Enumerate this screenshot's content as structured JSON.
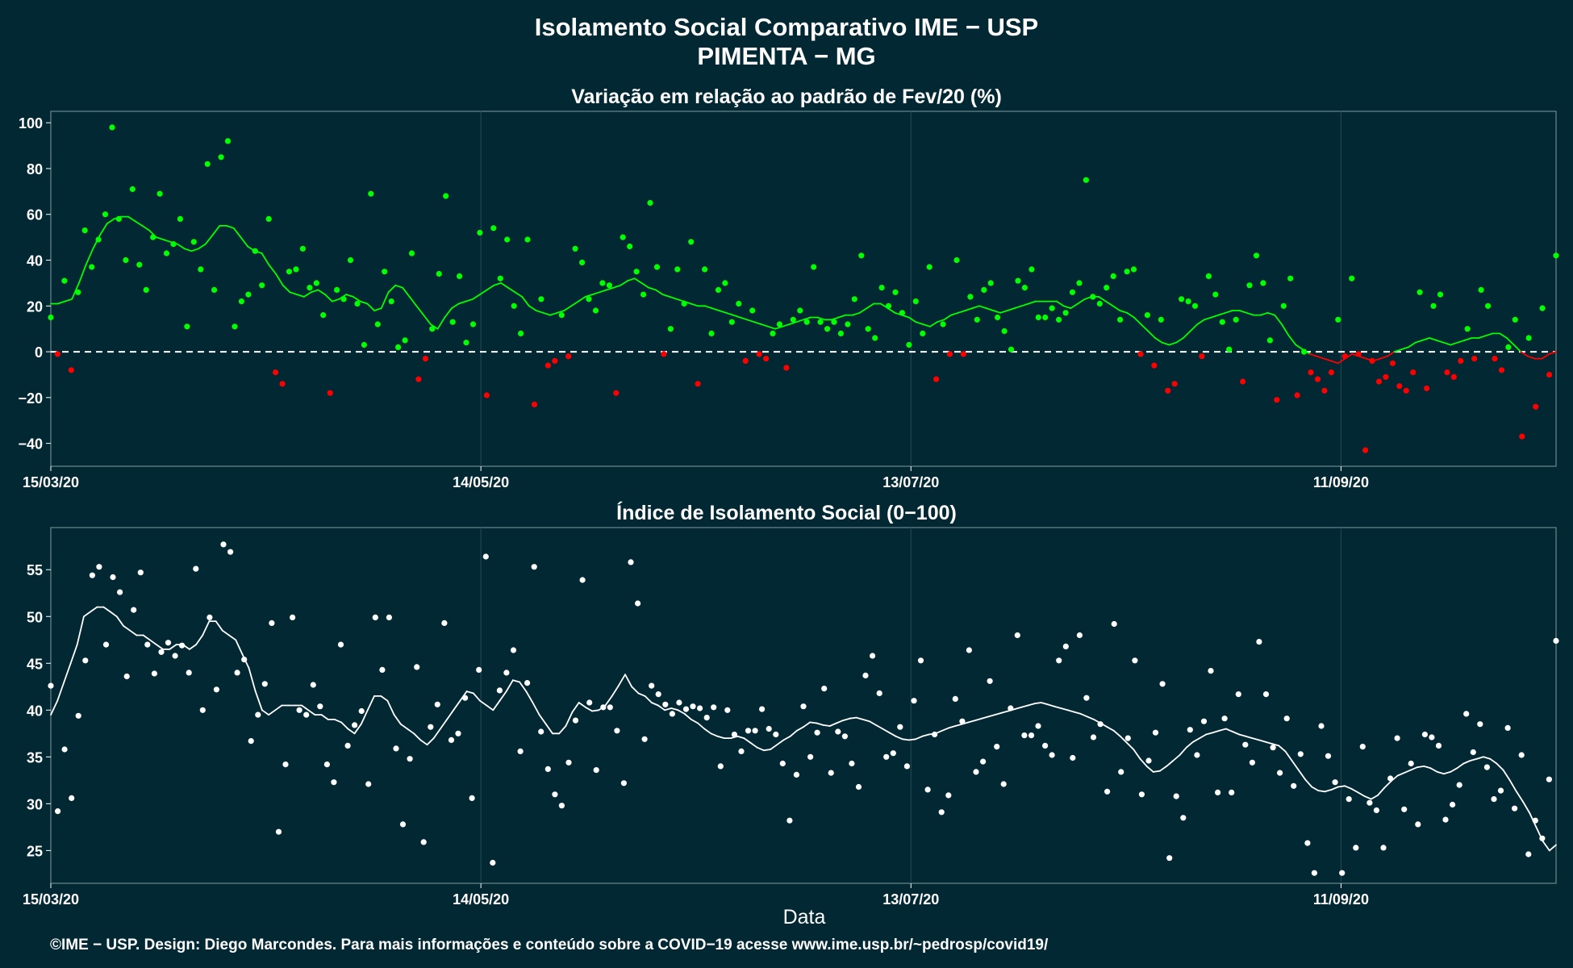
{
  "header": {
    "title": "Isolamento Social Comparativo IME − USP",
    "subtitle": "PIMENTA − MG"
  },
  "footer": {
    "xlabel": "Data",
    "credit": "©IME − USP. Design: Diego Marcondes. Para mais informações e conteúdo sobre a COVID−19 acesse www.ime.usp.br/~pedrosp/covid19/"
  },
  "colors": {
    "background": "#022833",
    "frame": "#6b8a8f",
    "positive": "#00ff00",
    "negative": "#ff0000",
    "index": "#ffffff"
  },
  "chart_data": [
    {
      "type": "scatter",
      "title": "Variação em relação ao padrão de Fev/20 (%)",
      "xlabel": "Data",
      "ylabel": "",
      "x_start": "15/03/20",
      "x_end": "11/10/20",
      "xlim": [
        "15/03/20",
        "11/10/20"
      ],
      "ylim": [
        -50,
        105
      ],
      "y_ticks": [
        -40,
        -20,
        0,
        20,
        40,
        60,
        80,
        100
      ],
      "x_ticks": [
        "15/03/20",
        "14/05/20",
        "13/07/20",
        "11/09/20"
      ],
      "reference_line": 0,
      "color_rule": "green when value >= 0, red when value < 0",
      "series": [
        {
          "kind": "daily points",
          "values": [
            15,
            -1,
            31,
            -8,
            26,
            53,
            37,
            49,
            60,
            98,
            58,
            40,
            71,
            38,
            27,
            50,
            69,
            43,
            47,
            58,
            11,
            48,
            36,
            82,
            27,
            85,
            92,
            11,
            22,
            25,
            44,
            29,
            58,
            -9,
            -14,
            35,
            36,
            45,
            28,
            30,
            16,
            -18,
            27,
            23,
            40,
            21,
            3,
            69,
            12,
            35,
            22,
            2,
            5,
            43,
            -12,
            -3,
            10,
            34,
            68,
            13,
            33,
            4,
            12,
            52,
            -19,
            54,
            32,
            49,
            20,
            8,
            49,
            -23,
            23,
            -6,
            -4,
            16,
            -2,
            45,
            39,
            23,
            18,
            30,
            29,
            -18,
            50,
            46,
            35,
            25,
            65,
            37,
            -1,
            10,
            36,
            21,
            48,
            -14,
            36,
            8,
            27,
            30,
            13,
            21,
            -4,
            18,
            -1,
            -3,
            8,
            12,
            -7,
            14,
            18,
            13,
            37,
            13,
            10,
            13,
            8,
            12,
            23,
            42,
            10,
            6,
            28,
            20,
            26,
            17,
            3,
            22,
            8,
            37,
            -12,
            12,
            -1,
            40,
            -1,
            24,
            14,
            27,
            30,
            15,
            9,
            1,
            31,
            28,
            36,
            15,
            15,
            19,
            14,
            17,
            26,
            30,
            75,
            24,
            21,
            28,
            33,
            14,
            35,
            36,
            -1,
            16,
            -6,
            14,
            -17,
            -14,
            23,
            22,
            20,
            -2,
            33,
            25,
            13,
            1,
            14,
            -13,
            29,
            42,
            30,
            5,
            -21,
            20,
            32,
            -19,
            0,
            -9,
            -12,
            -17,
            -9,
            14,
            -2,
            32,
            -1,
            -43,
            -4,
            -13,
            -11,
            -5,
            -15,
            -17,
            -9,
            26,
            -16,
            20,
            25,
            -9,
            -11,
            -4,
            10,
            -3,
            27,
            20,
            -3,
            -8,
            2,
            14,
            -37,
            6,
            -24,
            19,
            -10,
            42
          ]
        },
        {
          "kind": "7-day moving average",
          "values": [
            21,
            21,
            22,
            23,
            30,
            38,
            45,
            51,
            56,
            58,
            59,
            59,
            57,
            55,
            53,
            50,
            49,
            48,
            47,
            45,
            44,
            45,
            47,
            51,
            55,
            55,
            54,
            50,
            46,
            44,
            43,
            38,
            34,
            29,
            26,
            25,
            24,
            26,
            27,
            25,
            22,
            23,
            25,
            24,
            22,
            21,
            18,
            19,
            26,
            29,
            28,
            24,
            20,
            16,
            12,
            10,
            15,
            19,
            21,
            22,
            23,
            25,
            27,
            29,
            30,
            28,
            26,
            24,
            20,
            18,
            17,
            16,
            17,
            18,
            20,
            22,
            24,
            25,
            26,
            27,
            28,
            29,
            31,
            32,
            30,
            28,
            27,
            25,
            24,
            23,
            22,
            21,
            20,
            20,
            19,
            18,
            17,
            16,
            15,
            14,
            13,
            12,
            11,
            10,
            11,
            12,
            13,
            14,
            15,
            15,
            14,
            14,
            15,
            16,
            16,
            17,
            19,
            21,
            21,
            19,
            17,
            16,
            15,
            13,
            12,
            11,
            13,
            14,
            16,
            17,
            18,
            19,
            20,
            19,
            18,
            17,
            18,
            19,
            20,
            21,
            22,
            22,
            22,
            22,
            20,
            19,
            21,
            23,
            24,
            24,
            22,
            20,
            18,
            17,
            15,
            12,
            9,
            6,
            4,
            3,
            4,
            6,
            9,
            12,
            14,
            15,
            16,
            17,
            18,
            18,
            17,
            16,
            16,
            17,
            16,
            12,
            7,
            3,
            1,
            -1,
            -2,
            -3,
            -4,
            -5,
            -3,
            -1,
            -2,
            -3,
            -4,
            -3,
            -2,
            0,
            1,
            2,
            4,
            5,
            6,
            5,
            4,
            3,
            4,
            5,
            6,
            6,
            7,
            8,
            8,
            6,
            3,
            0,
            -2,
            -3,
            -3,
            -1,
            0
          ]
        }
      ]
    },
    {
      "type": "scatter",
      "title": "Índice de Isolamento Social (0−100)",
      "xlabel": "Data",
      "ylabel": "",
      "x_start": "15/03/20",
      "x_end": "11/10/20",
      "xlim": [
        "15/03/20",
        "11/10/20"
      ],
      "ylim": [
        21.5,
        59.5
      ],
      "y_ticks": [
        25,
        30,
        35,
        40,
        45,
        50,
        55
      ],
      "x_ticks": [
        "15/03/20",
        "14/05/20",
        "13/07/20",
        "11/09/20"
      ],
      "series": [
        {
          "kind": "daily points",
          "values": [
            42.6,
            29.2,
            35.8,
            30.6,
            39.4,
            45.3,
            54.4,
            55.3,
            47,
            54.2,
            52.6,
            43.6,
            50.7,
            54.7,
            47,
            43.9,
            46.2,
            47.2,
            45.8,
            46.9,
            44,
            55.1,
            40,
            49.9,
            42.2,
            57.7,
            56.9,
            44,
            45.4,
            36.7,
            39.5,
            42.8,
            49.3,
            27,
            34.2,
            49.9,
            40,
            39.5,
            42.7,
            40.4,
            34.2,
            32.3,
            47,
            36.2,
            38.4,
            39.9,
            32.1,
            49.9,
            44.3,
            49.9,
            35.9,
            27.8,
            34.8,
            44.6,
            25.9,
            38.2,
            40.6,
            49.3,
            36.8,
            37.5,
            41.3,
            30.6,
            44.3,
            56.4,
            23.7,
            42.1,
            44,
            46.4,
            35.6,
            42.9,
            55.3,
            37.7,
            33.7,
            31,
            29.8,
            34.4,
            38.9,
            53.9,
            40.8,
            33.6,
            40.3,
            40.3,
            37.8,
            32.2,
            55.8,
            51.4,
            36.9,
            42.6,
            41.7,
            40.6,
            39.6,
            40.8,
            40.1,
            40.4,
            40.2,
            39.2,
            40.3,
            34,
            40,
            37.4,
            35.6,
            37.8,
            37.8,
            40.1,
            38,
            37.4,
            34.3,
            28.2,
            33.1,
            40.4,
            35,
            37.6,
            42.3,
            33.3,
            37.7,
            37.2,
            34.3,
            31.8,
            43.7,
            45.8,
            41.8,
            35,
            35.4,
            38.2,
            34,
            41,
            45.3,
            31.5,
            37.4,
            29.1,
            30.9,
            41.2,
            38.8,
            46.4,
            33.4,
            34.5,
            43.1,
            36.1,
            32.1,
            40.2,
            48,
            37.3,
            37.3,
            38.3,
            36.2,
            35.2,
            45.3,
            46.8,
            34.9,
            48,
            41.3,
            37.1,
            38.5,
            31.3,
            49.2,
            33.4,
            37,
            45.3,
            31,
            34.6,
            37.6,
            42.8,
            24.2,
            30.8,
            28.5,
            37.9,
            35.2,
            38.8,
            44.2,
            31.2,
            39.1,
            31.2,
            41.7,
            36.3,
            34.4,
            47.3,
            41.7,
            36,
            33.3,
            39.1,
            31.9,
            35.3,
            25.8,
            22.6,
            38.3,
            35.1,
            32.3,
            22.6,
            30.5,
            25.3,
            36.1,
            30.1,
            29.3,
            25.3,
            32.7,
            37,
            29.4,
            34.3,
            27.8,
            37.4,
            37.1,
            36.2,
            28.3,
            29.9,
            32,
            39.6,
            35.5,
            38.5,
            33.9,
            30.5,
            31.4,
            38.1,
            29.5,
            35.2,
            24.6,
            28.2,
            26.3,
            32.6,
            47.4
          ]
        },
        {
          "kind": "7-day moving average",
          "values": [
            39.5,
            41,
            43,
            45,
            47,
            50,
            50.5,
            51,
            51,
            50.5,
            50,
            49,
            48.5,
            48,
            48,
            47.5,
            47,
            46.5,
            46.5,
            47,
            47,
            46.5,
            47,
            48,
            49.5,
            49.5,
            48.5,
            48,
            47.5,
            46,
            44.5,
            42,
            40,
            39.5,
            40,
            40.5,
            40.5,
            40.5,
            40.5,
            40,
            39.5,
            39.5,
            39,
            39,
            38.7,
            38,
            37.5,
            38.5,
            40,
            41.5,
            41.5,
            41,
            39.5,
            38.5,
            38,
            37.5,
            36.8,
            36.3,
            37,
            38,
            39,
            40,
            41,
            42,
            41.8,
            41,
            40.5,
            40,
            41,
            42,
            43.2,
            43,
            42,
            40.8,
            39.5,
            38.5,
            37.5,
            37.5,
            38.3,
            39.8,
            40.8,
            40.3,
            39.9,
            40,
            40.5,
            41.5,
            42.6,
            43.8,
            42.5,
            41.8,
            41.5,
            40.8,
            40.5,
            40,
            40.2,
            40,
            39.6,
            39,
            38.6,
            38,
            37.5,
            37.2,
            37,
            37,
            37.2,
            37,
            36.5,
            36,
            35.7,
            35.8,
            36.3,
            36.8,
            37.2,
            37.8,
            38.2,
            38.7,
            38.6,
            38.4,
            38.3,
            38.6,
            38.9,
            39.1,
            39.2,
            39,
            38.8,
            38.4,
            38,
            37.6,
            37.2,
            36.9,
            36.8,
            36.9,
            37.2,
            37.4,
            37.5,
            37.8,
            38.1,
            38.3,
            38.5,
            38.7,
            38.9,
            39.1,
            39.3,
            39.5,
            39.7,
            39.9,
            40.1,
            40.3,
            40.5,
            40.7,
            40.8,
            40.6,
            40.4,
            40.2,
            40,
            39.8,
            39.6,
            39.3,
            39,
            38.6,
            38.2,
            37.8,
            37.2,
            36.5,
            35.8,
            34.8,
            34,
            33.4,
            33.5,
            34,
            34.6,
            35.2,
            36,
            36.6,
            37,
            37.4,
            37.6,
            37.8,
            38,
            37.7,
            37.4,
            37.2,
            37,
            36.8,
            36.6,
            36.4,
            36.2,
            35.6,
            34.6,
            33.6,
            32.6,
            31.8,
            31.4,
            31.3,
            31.5,
            31.8,
            31.9,
            31.6,
            31.2,
            30.8,
            30.5,
            30.9,
            31.7,
            32.4,
            33,
            33.3,
            33.6,
            33.9,
            34,
            33.8,
            33.4,
            33.2,
            33.4,
            33.8,
            34.3,
            34.6,
            34.8,
            35,
            34.8,
            34.3,
            33.6,
            32.5,
            31.3,
            30.2,
            29,
            27.5,
            26,
            25,
            25.6
          ]
        }
      ]
    }
  ]
}
